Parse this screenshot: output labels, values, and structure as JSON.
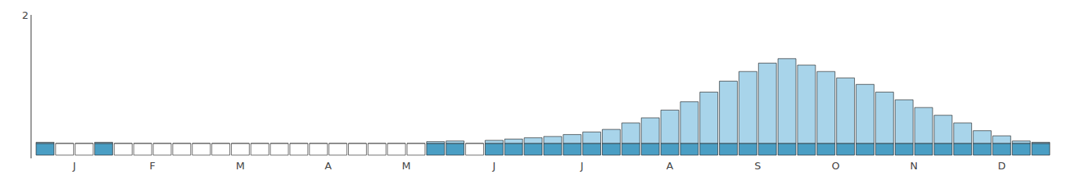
{
  "chart_data": {
    "type": "bar",
    "x": [
      1,
      2,
      3,
      4,
      5,
      6,
      7,
      8,
      9,
      10,
      11,
      12,
      13,
      14,
      15,
      16,
      17,
      18,
      19,
      20,
      21,
      22,
      23,
      24,
      25,
      26,
      27,
      28,
      29,
      30,
      31,
      32,
      33,
      34,
      35,
      36,
      37,
      38,
      39,
      40,
      41,
      42,
      43,
      44,
      45,
      46,
      47,
      48,
      49,
      50,
      51,
      52
    ],
    "series": [
      {
        "color": "#a8d4ea",
        "values": [
          0.02,
          0.0,
          0.0,
          0.02,
          0.0,
          0.0,
          0.0,
          0.0,
          0.0,
          0.0,
          0.0,
          0.0,
          0.0,
          0.0,
          0.0,
          0.0,
          0.0,
          0.0,
          0.0,
          0.0,
          0.03,
          0.04,
          0.0,
          0.05,
          0.07,
          0.09,
          0.11,
          0.14,
          0.18,
          0.22,
          0.32,
          0.4,
          0.52,
          0.65,
          0.8,
          0.97,
          1.12,
          1.25,
          1.32,
          1.22,
          1.12,
          1.02,
          0.92,
          0.8,
          0.68,
          0.56,
          0.44,
          0.32,
          0.2,
          0.12,
          0.04,
          0.02
        ]
      },
      {
        "colors": [
          "#4a9ec4",
          "#ffffff",
          "#ffffff",
          "#4a9ec4",
          "#ffffff",
          "#ffffff",
          "#ffffff",
          "#ffffff",
          "#ffffff",
          "#ffffff",
          "#ffffff",
          "#ffffff",
          "#ffffff",
          "#ffffff",
          "#ffffff",
          "#ffffff",
          "#ffffff",
          "#ffffff",
          "#ffffff",
          "#ffffff",
          "#4a9ec4",
          "#4a9ec4",
          "#ffffff",
          "#4a9ec4",
          "#4a9ec4",
          "#4a9ec4",
          "#4a9ec4",
          "#4a9ec4",
          "#4a9ec4",
          "#4a9ec4",
          "#4a9ec4",
          "#4a9ec4",
          "#4a9ec4",
          "#4a9ec4",
          "#4a9ec4",
          "#4a9ec4",
          "#4a9ec4",
          "#4a9ec4",
          "#4a9ec4",
          "#4a9ec4",
          "#4a9ec4",
          "#4a9ec4",
          "#4a9ec4",
          "#4a9ec4",
          "#4a9ec4",
          "#4a9ec4",
          "#4a9ec4",
          "#4a9ec4",
          "#4a9ec4",
          "#4a9ec4",
          "#4a9ec4",
          "#4a9ec4"
        ],
        "values": [
          -0.18,
          -0.18,
          -0.18,
          -0.18,
          -0.18,
          -0.18,
          -0.18,
          -0.18,
          -0.18,
          -0.18,
          -0.18,
          -0.18,
          -0.18,
          -0.18,
          -0.18,
          -0.18,
          -0.18,
          -0.18,
          -0.18,
          -0.18,
          -0.18,
          -0.18,
          -0.18,
          -0.18,
          -0.18,
          -0.18,
          -0.18,
          -0.18,
          -0.18,
          -0.18,
          -0.18,
          -0.18,
          -0.18,
          -0.18,
          -0.18,
          -0.18,
          -0.18,
          -0.18,
          -0.18,
          -0.18,
          -0.18,
          -0.18,
          -0.18,
          -0.18,
          -0.18,
          -0.18,
          -0.18,
          -0.18,
          -0.18,
          -0.18,
          -0.18,
          -0.18
        ]
      }
    ],
    "xlim": [
      0.3,
      52.7
    ],
    "xticks": [
      {
        "value": 2.5,
        "label": "J"
      },
      {
        "value": 6.5,
        "label": "F"
      },
      {
        "value": 11,
        "label": "M"
      },
      {
        "value": 15.5,
        "label": "A"
      },
      {
        "value": 19.5,
        "label": "M"
      },
      {
        "value": 24,
        "label": "J"
      },
      {
        "value": 28.5,
        "label": "J"
      },
      {
        "value": 33,
        "label": "A"
      },
      {
        "value": 37.5,
        "label": "S"
      },
      {
        "value": 41.5,
        "label": "O"
      },
      {
        "value": 45.5,
        "label": "N"
      },
      {
        "value": 50,
        "label": "D"
      }
    ],
    "ylim": [
      -0.23,
      2
    ],
    "yticks": [
      2
    ],
    "grid": false
  }
}
